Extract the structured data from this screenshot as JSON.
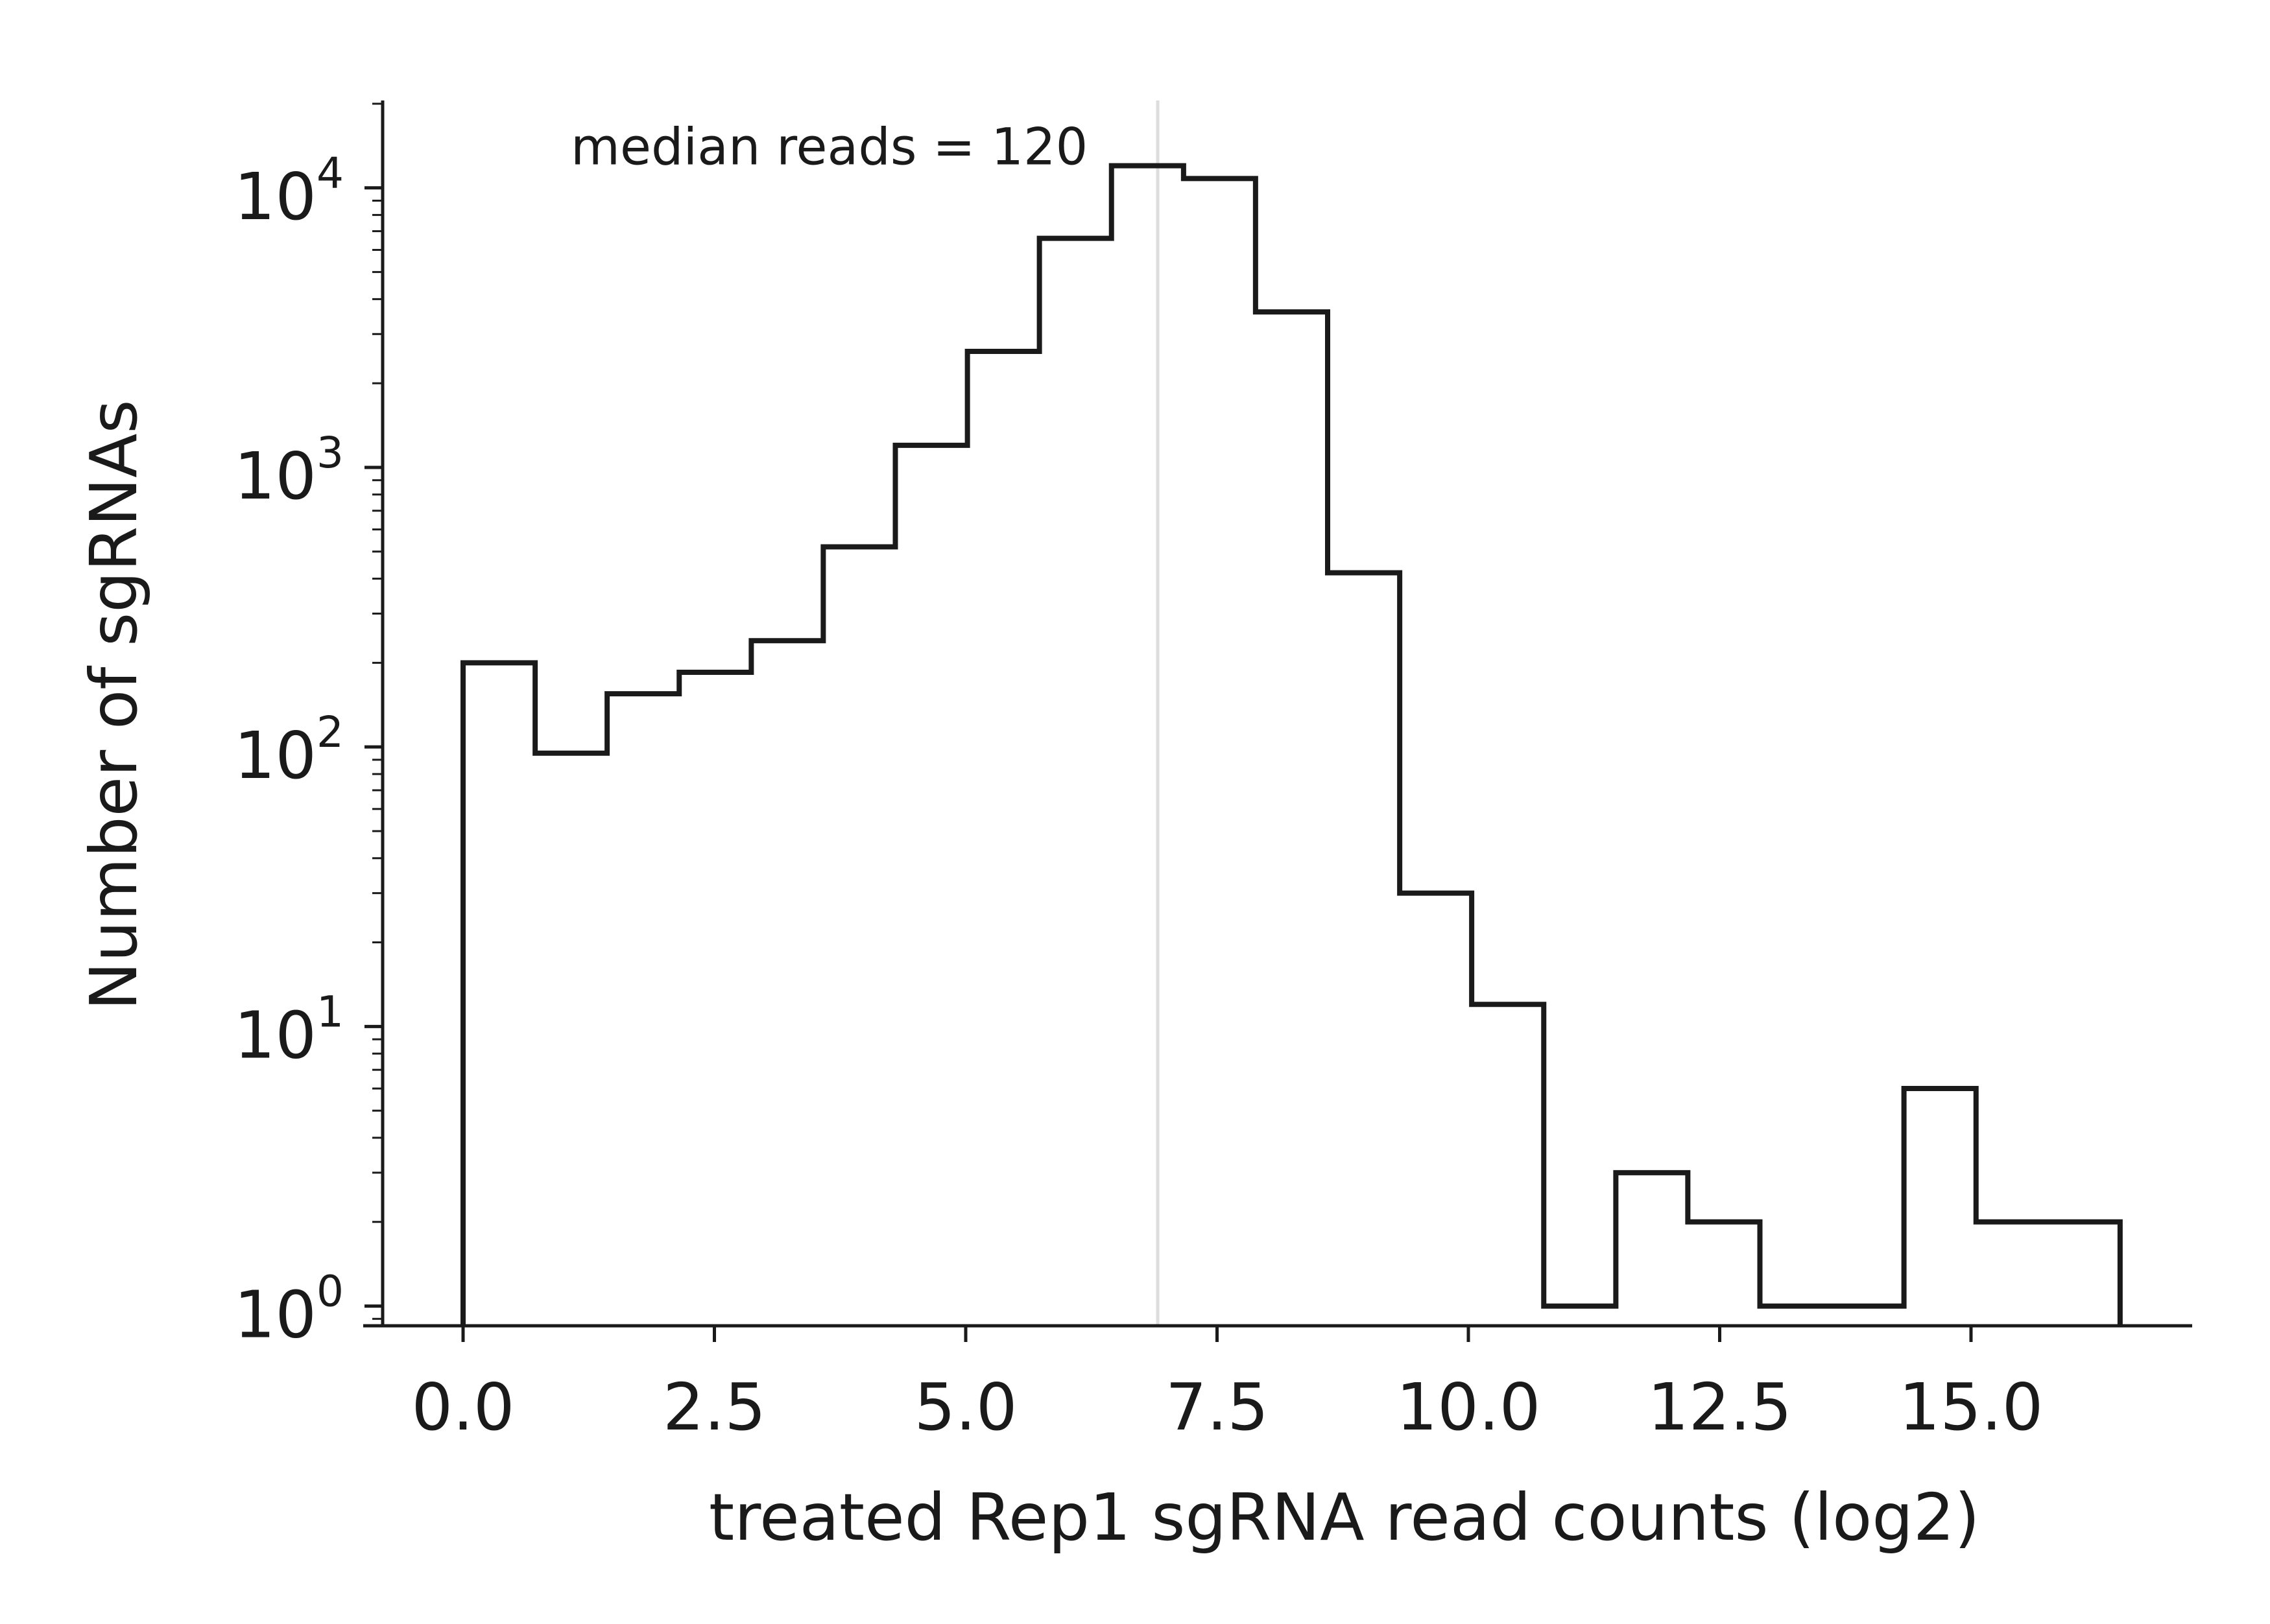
{
  "chart_data": {
    "type": "histogram",
    "title": "",
    "xlabel": "treated Rep1 sgRNA read counts (log2)",
    "ylabel": "Number of sgRNAs",
    "y_scale": "log",
    "xlim": [
      -0.8,
      17.2
    ],
    "ylim": [
      0.85,
      20000
    ],
    "x_ticks": [
      0.0,
      2.5,
      5.0,
      7.5,
      10.0,
      12.5,
      15.0
    ],
    "x_tick_labels": [
      "0.0",
      "2.5",
      "5.0",
      "7.5",
      "10.0",
      "12.5",
      "15.0"
    ],
    "y_ticks": [
      1,
      10,
      100,
      1000,
      10000
    ],
    "y_tick_labels": [
      {
        "base": "10",
        "exp": "0"
      },
      {
        "base": "10",
        "exp": "1"
      },
      {
        "base": "10",
        "exp": "2"
      },
      {
        "base": "10",
        "exp": "3"
      },
      {
        "base": "10",
        "exp": "4"
      }
    ],
    "bin_edges": [
      0.0,
      0.717,
      1.433,
      2.15,
      2.867,
      3.583,
      4.3,
      5.017,
      5.733,
      6.45,
      7.167,
      7.883,
      8.6,
      9.317,
      10.033,
      10.75,
      11.467,
      12.183,
      12.9,
      13.617,
      14.333,
      15.05,
      15.767,
      16.483
    ],
    "counts": [
      200,
      95,
      155,
      185,
      240,
      520,
      1200,
      2600,
      6600,
      12000,
      10800,
      3600,
      420,
      30,
      12,
      1,
      3,
      2,
      1,
      1,
      6,
      2,
      2
    ],
    "series": [
      {
        "name": "",
        "color": "#1a1a1a",
        "style": "step"
      }
    ],
    "reference_line": {
      "x": 6.91,
      "color": "#dddddd"
    },
    "annotation": {
      "text": "median reads = 120",
      "x": 1.2,
      "y": 13500
    },
    "grid": false,
    "legend": "none"
  }
}
